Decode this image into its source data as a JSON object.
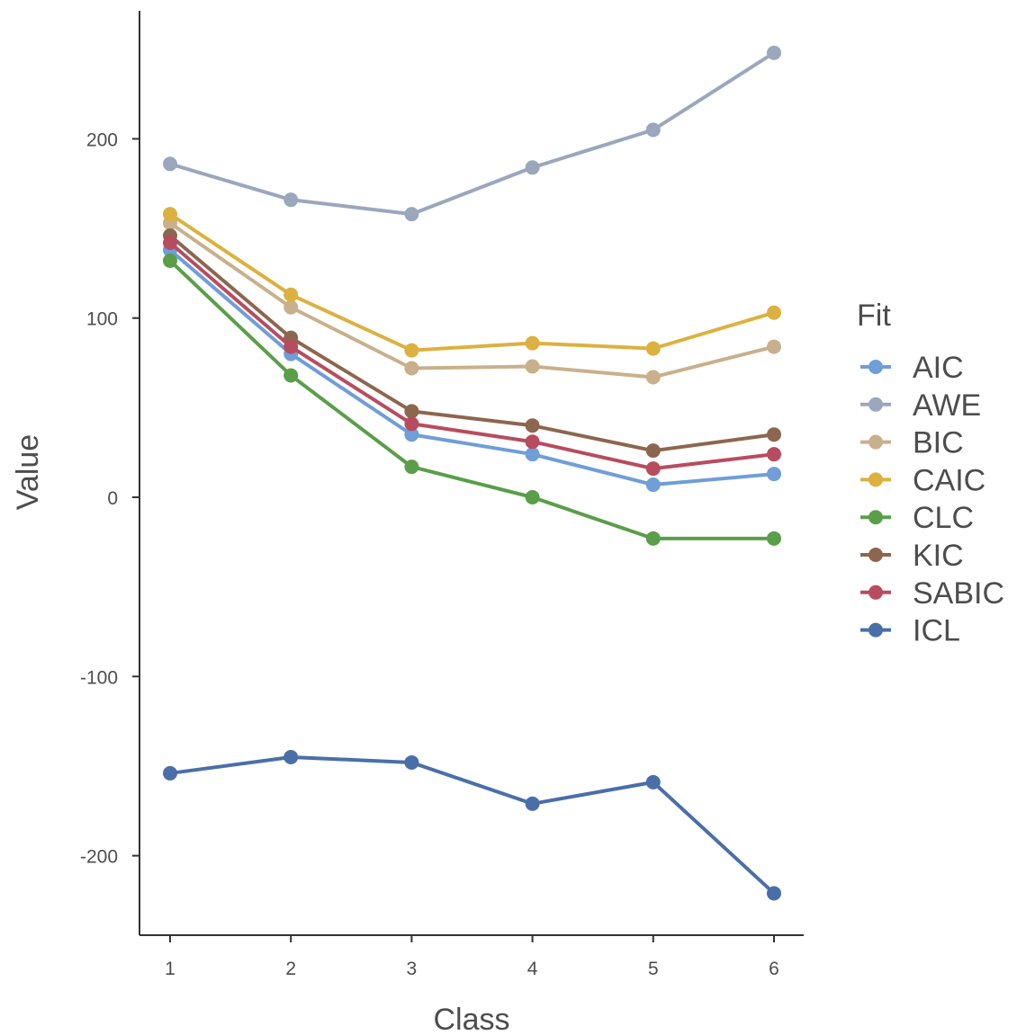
{
  "chart_data": {
    "type": "line",
    "xlabel": "Class",
    "ylabel": "Value",
    "x": [
      1,
      2,
      3,
      4,
      5,
      6
    ],
    "x_ticks": [
      "1",
      "2",
      "3",
      "4",
      "5",
      "6"
    ],
    "y_ticks": [
      "-200",
      "-100",
      "0",
      "100",
      "200"
    ],
    "y_tick_values": [
      -200,
      -100,
      0,
      100,
      200
    ],
    "ylim": [
      -245,
      272
    ],
    "xlim": [
      0.75,
      6.25
    ],
    "grid": false,
    "legend": {
      "title": "Fit",
      "position": "right"
    },
    "series": [
      {
        "name": "AIC",
        "color": "#6f9ed8",
        "values": [
          138,
          80,
          35,
          24,
          7,
          13
        ]
      },
      {
        "name": "AWE",
        "color": "#9aa7bd",
        "values": [
          186,
          166,
          158,
          184,
          205,
          248
        ]
      },
      {
        "name": "BIC",
        "color": "#c9b08c",
        "values": [
          153,
          106,
          72,
          73,
          67,
          84
        ]
      },
      {
        "name": "CAIC",
        "color": "#dcb140",
        "values": [
          158,
          113,
          82,
          86,
          83,
          103
        ]
      },
      {
        "name": "CLC",
        "color": "#5a9e4a",
        "values": [
          132,
          68,
          17,
          0,
          -23,
          -23
        ]
      },
      {
        "name": "KIC",
        "color": "#8c664e",
        "values": [
          146,
          89,
          48,
          40,
          26,
          35
        ]
      },
      {
        "name": "SABIC",
        "color": "#b84c5f",
        "values": [
          142,
          84,
          41,
          31,
          16,
          24
        ]
      },
      {
        "name": "ICL",
        "color": "#4a6fa8",
        "values": [
          -154,
          -145,
          -148,
          -171,
          -159,
          -221
        ]
      }
    ]
  }
}
